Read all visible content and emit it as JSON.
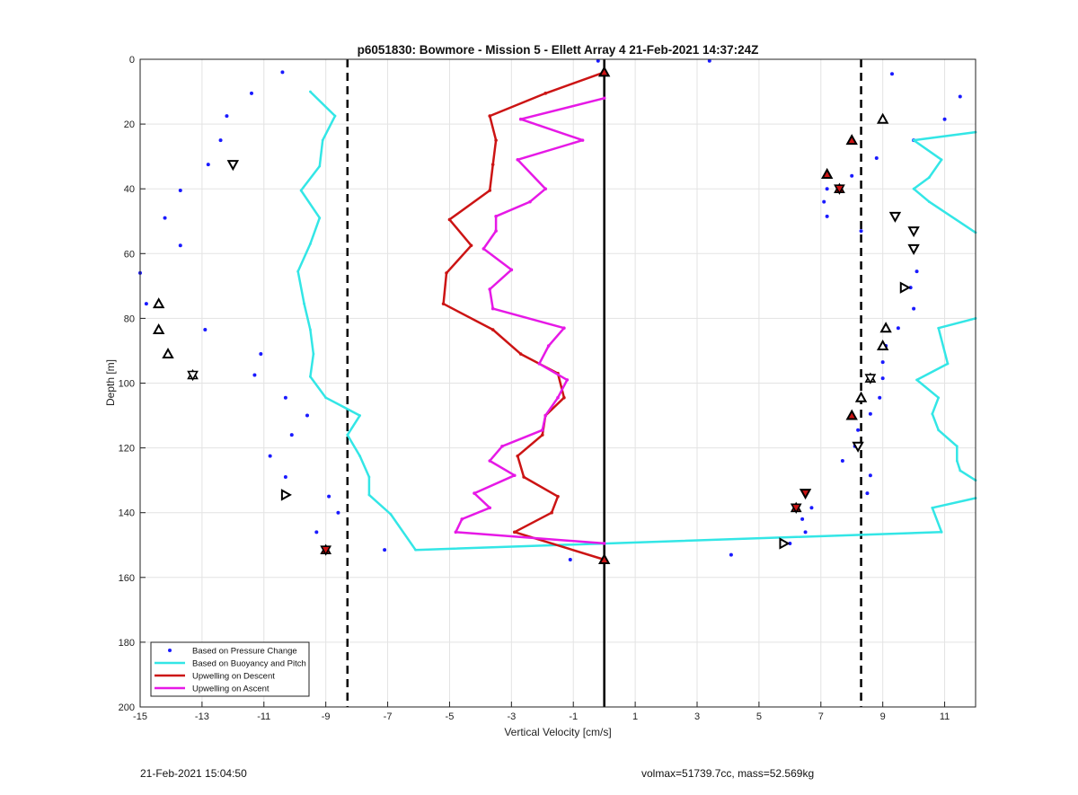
{
  "footer": {
    "timestamp": "21-Feb-2021 15:04:50",
    "vol_mass": "volmax=51739.7cc, mass=52.569kg"
  },
  "colors": {
    "pressure": "#1a1aff",
    "buoyancy": "#33e6e6",
    "descent": "#cc1414",
    "ascent": "#e619e6",
    "reference": "#000000"
  },
  "chart_data": {
    "type": "line",
    "title": "p6051830: Bowmore - Mission 5 - Ellett Array 4 21-Feb-2021 14:37:24Z",
    "xlabel": "Vertical Velocity [cm/s]",
    "ylabel": "Depth [m]",
    "xlim": [
      -15,
      12
    ],
    "ylim": [
      0,
      200
    ],
    "y_reversed": true,
    "grid": true,
    "xticks": [
      -15,
      -13,
      -11,
      -9,
      -7,
      -5,
      -3,
      -1,
      1,
      3,
      5,
      7,
      9,
      11
    ],
    "yticks": [
      0,
      20,
      40,
      60,
      80,
      100,
      120,
      140,
      160,
      180,
      200
    ],
    "legend_position": "bottom-left",
    "reference_lines": [
      {
        "x": -8.3,
        "style": "dashed"
      },
      {
        "x": 8.3,
        "style": "dashed"
      },
      {
        "x": 0,
        "style": "solid"
      }
    ],
    "series": [
      {
        "name": "Based on Pressure Change",
        "kind": "scatter",
        "points": [
          [
            -0.2,
            0.5
          ],
          [
            3.4,
            0.5
          ],
          [
            -10.4,
            4
          ],
          [
            9.3,
            4.5
          ],
          [
            -11.4,
            10.5
          ],
          [
            11.5,
            11.5
          ],
          [
            -12.2,
            17.5
          ],
          [
            11,
            18.5
          ],
          [
            -12.4,
            25
          ],
          [
            10,
            25
          ],
          [
            -12.8,
            32.5
          ],
          [
            8.8,
            30.5
          ],
          [
            -13.7,
            40.5
          ],
          [
            8,
            36
          ],
          [
            7.2,
            40
          ],
          [
            -14.2,
            49
          ],
          [
            7.1,
            44
          ],
          [
            7.2,
            48.5
          ],
          [
            8.3,
            53
          ],
          [
            -13.7,
            57.5
          ],
          [
            10.1,
            65.5
          ],
          [
            -15,
            66
          ],
          [
            9.9,
            70.5
          ],
          [
            -14.8,
            75.5
          ],
          [
            10,
            77
          ],
          [
            -12.9,
            83.5
          ],
          [
            9.5,
            83
          ],
          [
            -11.1,
            91
          ],
          [
            9.1,
            88.5
          ],
          [
            9,
            93.5
          ],
          [
            -11.3,
            97.5
          ],
          [
            9,
            98.5
          ],
          [
            -10.3,
            104.5
          ],
          [
            8.9,
            104.5
          ],
          [
            -9.6,
            110
          ],
          [
            8.6,
            109.5
          ],
          [
            -10.1,
            116
          ],
          [
            8.2,
            114.5
          ],
          [
            -10.8,
            122.5
          ],
          [
            8.1,
            119.5
          ],
          [
            -10.3,
            129
          ],
          [
            7.7,
            124
          ],
          [
            8.6,
            128.5
          ],
          [
            -8.9,
            135
          ],
          [
            8.5,
            134
          ],
          [
            -8.6,
            140
          ],
          [
            6.7,
            138.5
          ],
          [
            6.4,
            142
          ],
          [
            6.5,
            146
          ],
          [
            -9.3,
            146
          ],
          [
            -7.1,
            151.5
          ],
          [
            6,
            149.5
          ],
          [
            4.1,
            153
          ],
          [
            -1.1,
            154.5
          ]
        ]
      },
      {
        "name": "Based on Buoyancy and Pitch",
        "kind": "line",
        "points": [
          [
            -9.5,
            10
          ],
          [
            -8.7,
            17.5
          ],
          [
            -9.1,
            25
          ],
          [
            -9.2,
            33
          ],
          [
            -9.8,
            40.5
          ],
          [
            -9.2,
            49
          ],
          [
            -9.5,
            57
          ],
          [
            -9.9,
            65.5
          ],
          [
            -9.7,
            75.5
          ],
          [
            -9.5,
            83.5
          ],
          [
            -9.4,
            91
          ],
          [
            -9.5,
            98
          ],
          [
            -9,
            104.5
          ],
          [
            -7.9,
            110
          ],
          [
            -8.3,
            116
          ],
          [
            -7.9,
            122.5
          ],
          [
            -7.6,
            129
          ],
          [
            -7.6,
            134.5
          ],
          [
            -6.9,
            140.5
          ],
          [
            -6.1,
            151.5
          ],
          [
            10.9,
            146
          ],
          [
            10.6,
            138.5
          ],
          [
            12,
            135.5
          ]
        ]
      },
      {
        "name": "Based on Buoyancy and Pitch",
        "kind": "line",
        "points": [
          [
            12,
            22.5
          ],
          [
            10,
            25
          ],
          [
            10.9,
            31
          ],
          [
            10.5,
            36.5
          ],
          [
            10,
            40
          ],
          [
            10.5,
            44
          ],
          [
            12,
            53.5
          ]
        ]
      },
      {
        "name": "Based on Buoyancy and Pitch",
        "kind": "line",
        "points": [
          [
            12,
            80
          ],
          [
            10.8,
            83
          ],
          [
            11.1,
            94
          ],
          [
            10.1,
            99
          ],
          [
            10.8,
            104.5
          ],
          [
            10.6,
            109.5
          ],
          [
            10.8,
            114.5
          ],
          [
            11.4,
            119.5
          ],
          [
            11.4,
            124
          ],
          [
            11.5,
            127
          ],
          [
            12,
            130
          ]
        ]
      },
      {
        "name": "Upwelling on Descent",
        "kind": "line",
        "points": [
          [
            0,
            4
          ],
          [
            -1.9,
            10.5
          ],
          [
            -3.7,
            17.5
          ],
          [
            -3.5,
            25
          ],
          [
            -3.6,
            32.5
          ],
          [
            -3.7,
            40.5
          ],
          [
            -5,
            49.5
          ],
          [
            -4.3,
            57.5
          ],
          [
            -5.1,
            66
          ],
          [
            -5.2,
            75.5
          ],
          [
            -3.6,
            83.5
          ],
          [
            -2.7,
            91
          ],
          [
            -1.5,
            97
          ],
          [
            -1.3,
            104.5
          ],
          [
            -1.9,
            110
          ],
          [
            -2,
            116
          ],
          [
            -2.8,
            122.5
          ],
          [
            -2.6,
            129
          ],
          [
            -1.5,
            135
          ],
          [
            -1.7,
            140
          ],
          [
            -2.9,
            146
          ],
          [
            0,
            154.5
          ]
        ]
      },
      {
        "name": "Upwelling on Ascent",
        "kind": "line",
        "points": [
          [
            0,
            12
          ],
          [
            -2.7,
            18.5
          ],
          [
            -0.7,
            25
          ],
          [
            -2.8,
            31
          ],
          [
            -1.9,
            40
          ],
          [
            -2.4,
            44
          ],
          [
            -3.5,
            48.5
          ],
          [
            -3.5,
            53
          ],
          [
            -3.9,
            58.5
          ],
          [
            -3,
            65
          ],
          [
            -3.7,
            71
          ],
          [
            -3.6,
            77
          ],
          [
            -1.3,
            83
          ],
          [
            -1.8,
            88.5
          ],
          [
            -2.1,
            94
          ],
          [
            -1.2,
            99
          ],
          [
            -1.5,
            104.5
          ],
          [
            -1.9,
            110
          ],
          [
            -2,
            114.5
          ],
          [
            -3.3,
            119.5
          ],
          [
            -3.7,
            124
          ],
          [
            -2.9,
            128.5
          ],
          [
            -4.2,
            134
          ],
          [
            -3.7,
            138.5
          ],
          [
            -4.6,
            142
          ],
          [
            -4.8,
            146
          ],
          [
            0,
            149.5
          ]
        ]
      },
      {
        "name": "",
        "kind": "markers",
        "points": [
          [
            9,
            18.5,
            "up"
          ],
          [
            8,
            25,
            "up-red"
          ],
          [
            7.2,
            35.5,
            "up-red"
          ],
          [
            7.6,
            40,
            "star-red"
          ],
          [
            9.4,
            48.5,
            "down"
          ],
          [
            10,
            53,
            "down"
          ],
          [
            10,
            58.5,
            "down"
          ],
          [
            9.7,
            70.5,
            "right"
          ],
          [
            9.1,
            83,
            "up"
          ],
          [
            9,
            88.5,
            "up"
          ],
          [
            8.6,
            98.5,
            "star"
          ],
          [
            8.3,
            104.5,
            "up"
          ],
          [
            8,
            110,
            "up-red"
          ],
          [
            8.2,
            119.5,
            "down"
          ],
          [
            6.5,
            134,
            "down-red"
          ],
          [
            6.2,
            138.5,
            "star-red"
          ],
          [
            5.8,
            149.5,
            "right"
          ],
          [
            -12,
            32.5,
            "down"
          ],
          [
            -14.4,
            75.5,
            "up"
          ],
          [
            -14.4,
            83.5,
            "up"
          ],
          [
            -14.1,
            91,
            "up"
          ],
          [
            -13.3,
            97.5,
            "star"
          ],
          [
            -10.3,
            134.5,
            "right"
          ],
          [
            -9,
            151.5,
            "star-red"
          ],
          [
            0,
            4,
            "up-red"
          ],
          [
            0,
            154.5,
            "up-red"
          ]
        ]
      }
    ]
  }
}
